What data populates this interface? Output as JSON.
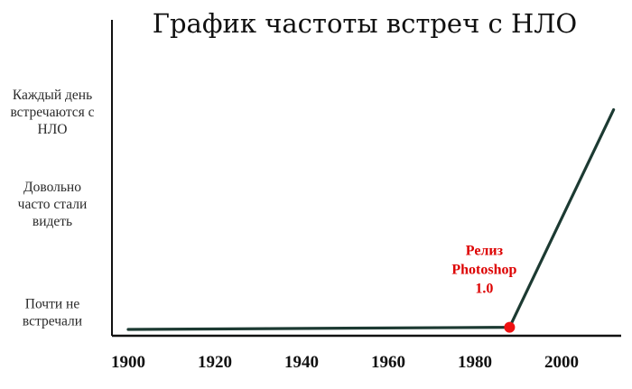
{
  "chart_data": {
    "type": "line",
    "title": "График частоты встреч с НЛО",
    "xlabel": "",
    "ylabel": "",
    "x_ticks": [
      "1900",
      "1920",
      "1940",
      "1960",
      "1980",
      "2000"
    ],
    "xlim": [
      1900,
      2012
    ],
    "y_levels": [
      {
        "value": 0,
        "label": [
          "Почти не",
          "встречали"
        ]
      },
      {
        "value": 1,
        "label": [
          "Довольно",
          "часто стали",
          "видеть"
        ]
      },
      {
        "value": 2,
        "label": [
          "Каждый день",
          "встречаются с",
          "НЛО"
        ]
      }
    ],
    "ylim": [
      0,
      2
    ],
    "grid": false,
    "series": [
      {
        "x": [
          1900,
          1988,
          2012
        ],
        "y": [
          0,
          0.02,
          2.02
        ],
        "color": "#1c3a32"
      }
    ],
    "annotations": [
      {
        "x": 1988,
        "y": 0.02,
        "text": [
          "Релиз",
          "Photoshop",
          "1.0"
        ],
        "color": "#e00000"
      }
    ]
  }
}
